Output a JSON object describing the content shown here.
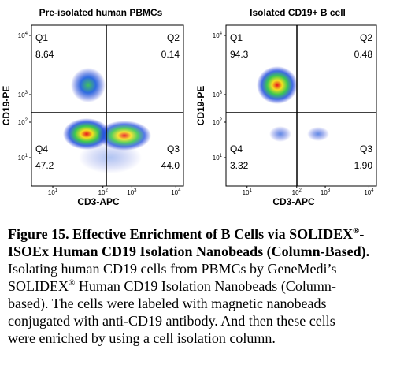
{
  "plots": [
    {
      "title": "Pre-isolated human PBMCs",
      "y_label": "CD19-PE",
      "x_label": "CD3-APC",
      "quadrants": [
        {
          "label": "Q1",
          "value": "8.64"
        },
        {
          "label": "Q2",
          "value": "0.14"
        },
        {
          "label": "Q4",
          "value": "47.2"
        },
        {
          "label": "Q3",
          "value": "44.0"
        }
      ],
      "yticks": [
        {
          "base": "10",
          "exp": "4"
        },
        {
          "base": "10",
          "exp": "3"
        },
        {
          "base": "10",
          "exp": "2"
        },
        {
          "base": "10",
          "exp": "1"
        }
      ],
      "xticks": [
        {
          "base": "10",
          "exp": "1"
        },
        {
          "base": "10",
          "exp": "2"
        },
        {
          "base": "10",
          "exp": "3"
        },
        {
          "base": "10",
          "exp": "4"
        }
      ]
    },
    {
      "title": "Isolated CD19+ B cell",
      "y_label": "CD19-PE",
      "x_label": "CD3-APC",
      "quadrants": [
        {
          "label": "Q1",
          "value": "94.3"
        },
        {
          "label": "Q2",
          "value": "0.48"
        },
        {
          "label": "Q4",
          "value": "3.32"
        },
        {
          "label": "Q3",
          "value": "1.90"
        }
      ],
      "yticks": [
        {
          "base": "10",
          "exp": "4"
        },
        {
          "base": "10",
          "exp": "3"
        },
        {
          "base": "10",
          "exp": "2"
        },
        {
          "base": "10",
          "exp": "1"
        }
      ],
      "xticks": [
        {
          "base": "10",
          "exp": "1"
        },
        {
          "base": "10",
          "exp": "2"
        },
        {
          "base": "10",
          "exp": "3"
        },
        {
          "base": "10",
          "exp": "4"
        }
      ]
    }
  ],
  "caption": {
    "title": [
      "Figure 15. Effective Enrichment of B Cells via SOLIDEX",
      "®",
      "-",
      "ISOEx Human CD19 Isolation Nanobeads (Column-Based)."
    ],
    "body": [
      "Isolating human CD19 cells from PBMCs by GeneMedi’s",
      "SOLIDEX",
      "®",
      " Human CD19 Isolation Nanobeads (Column-",
      "based). The cells were labeled with magnetic nanobeads",
      "conjugated with anti-CD19 antibody. And then these cells",
      "were enriched by using a cell isolation column."
    ]
  }
}
